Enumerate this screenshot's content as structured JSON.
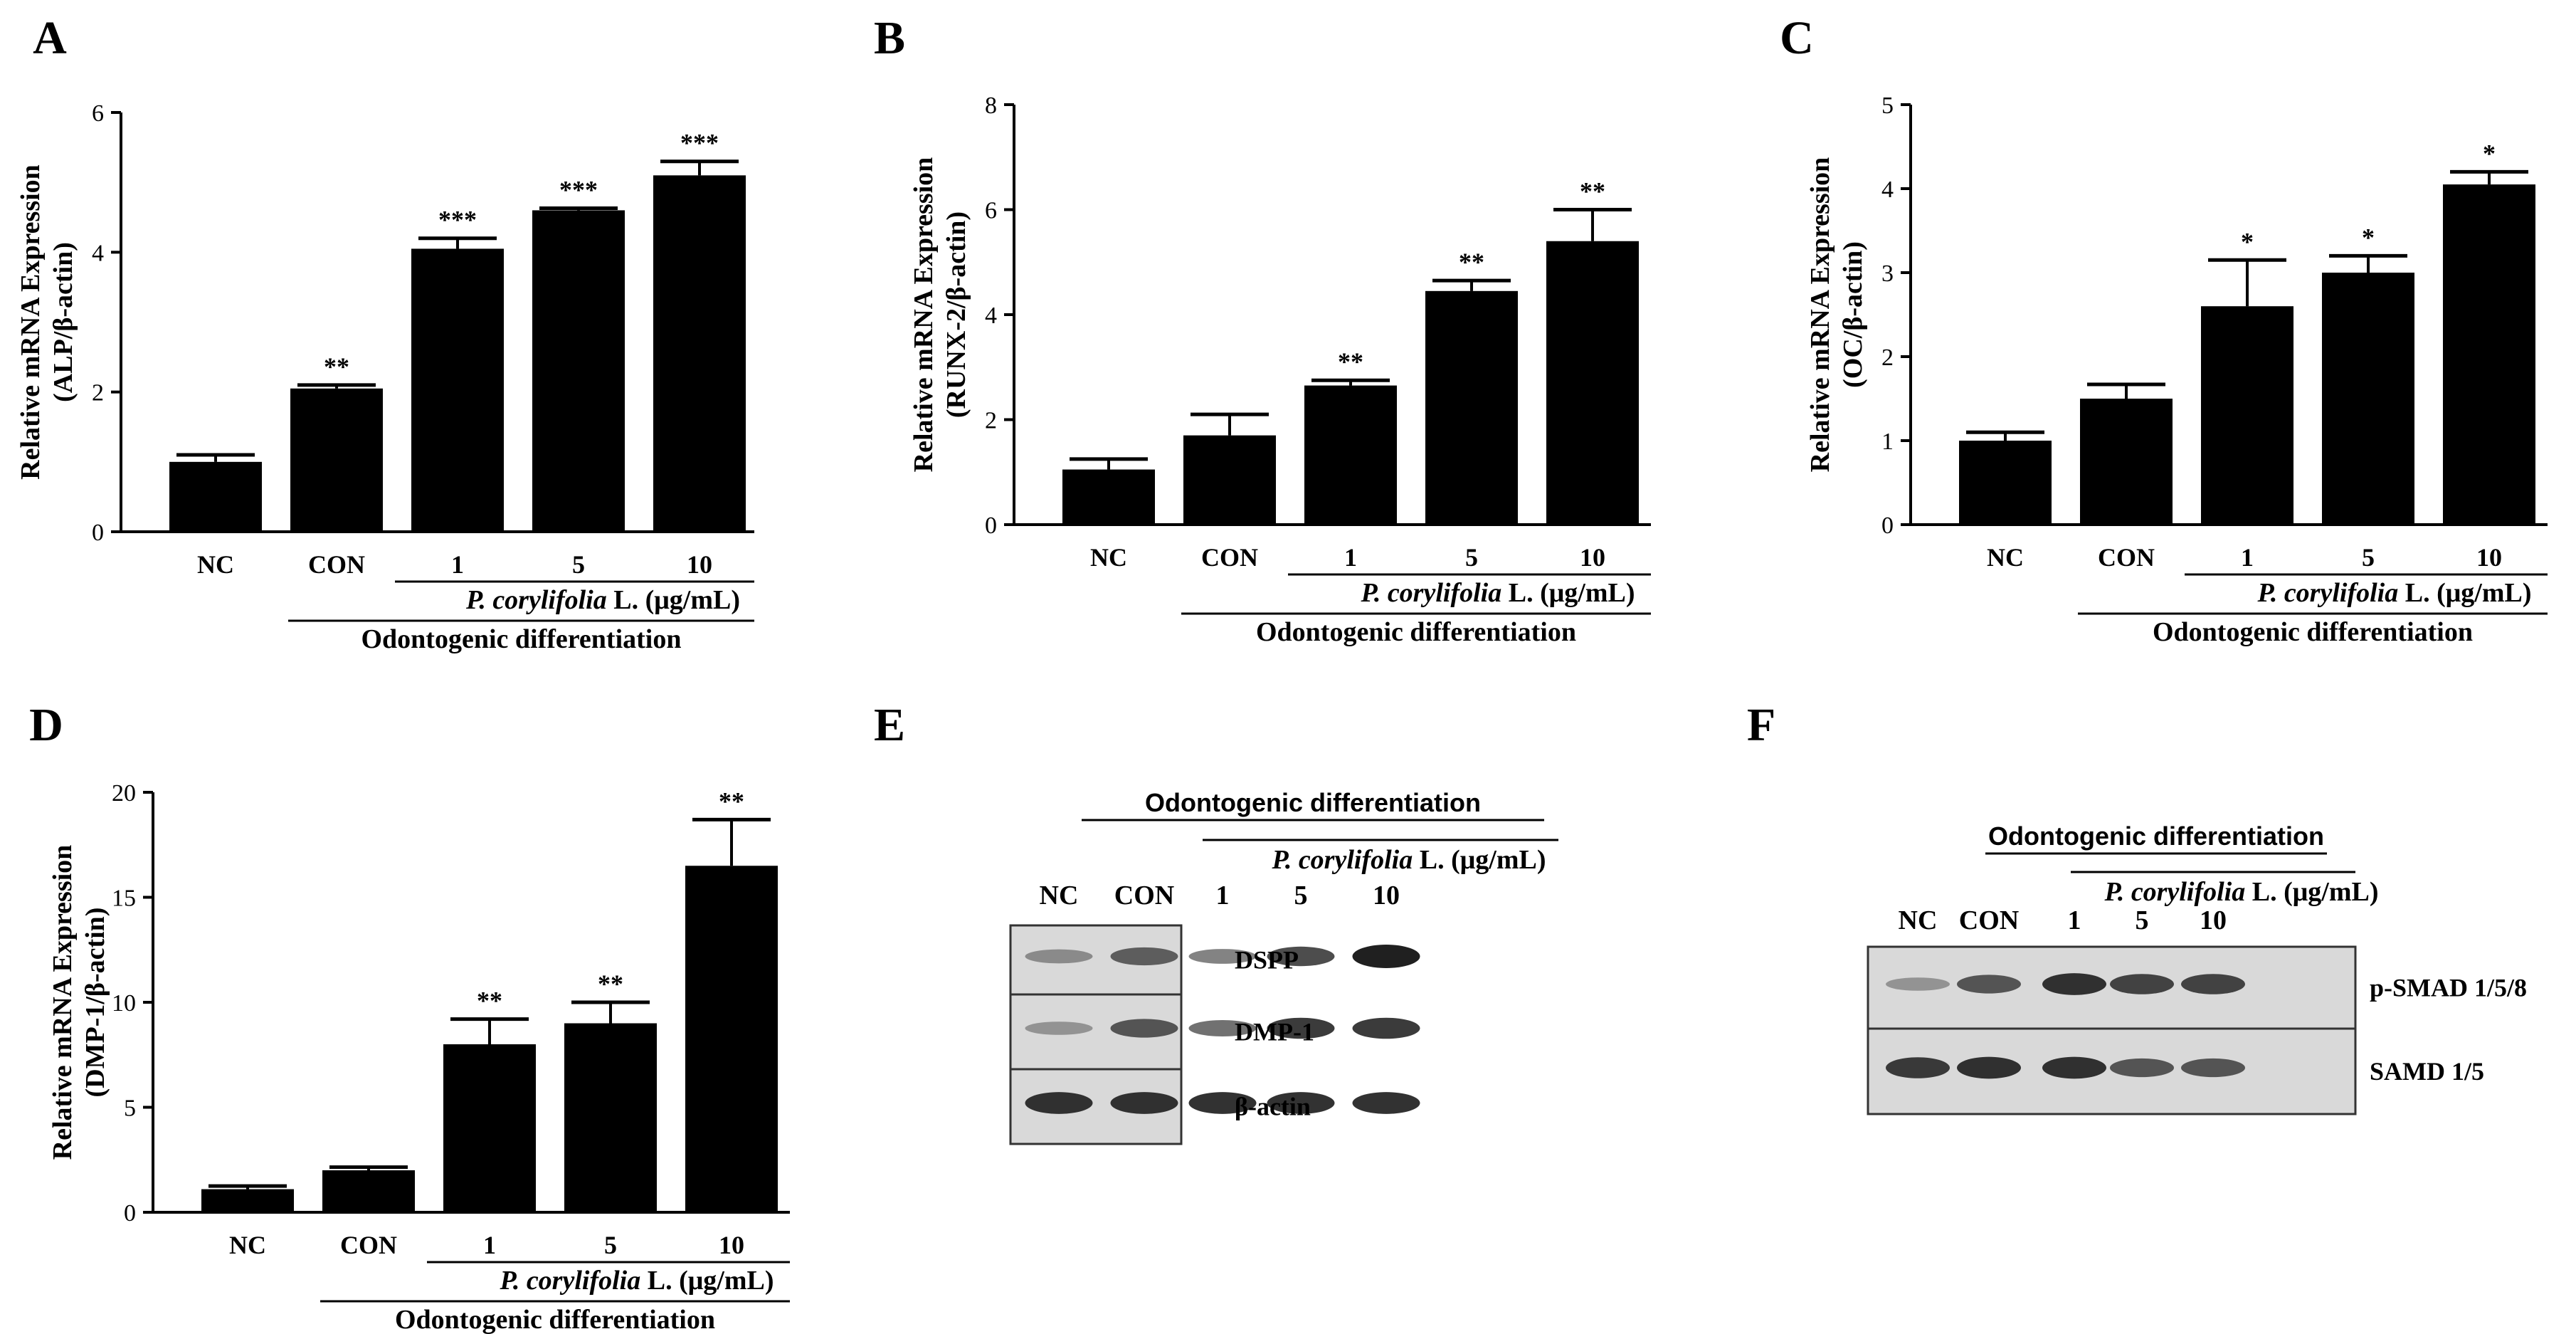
{
  "chart_data": [
    {
      "panel": "A",
      "type": "bar",
      "categories": [
        "NC",
        "CON",
        "1",
        "5",
        "10"
      ],
      "values": [
        1.0,
        2.05,
        4.05,
        4.6,
        5.1
      ],
      "errors": [
        0.1,
        0.05,
        0.15,
        0.03,
        0.2
      ],
      "significance": [
        "",
        "**",
        "***",
        "***",
        "***"
      ],
      "ylabel": [
        "Relative mRNA Expression",
        "(ALP/β-actin)"
      ],
      "ylim": [
        0,
        6
      ],
      "yticks": [
        "0",
        "2",
        "4",
        "6"
      ],
      "subgroup_label": "L. (μg/mL)",
      "subgroup_italic": "P. corylifolia",
      "group_label": "Odontogenic differentiation"
    },
    {
      "panel": "B",
      "type": "bar",
      "categories": [
        "NC",
        "CON",
        "1",
        "5",
        "10"
      ],
      "values": [
        1.05,
        1.7,
        2.65,
        4.45,
        5.4
      ],
      "errors": [
        0.2,
        0.4,
        0.1,
        0.2,
        0.6
      ],
      "significance": [
        "",
        "",
        "**",
        "**",
        "**"
      ],
      "ylabel": [
        "Relative mRNA Expression",
        "(RUNX-2/β-actin)"
      ],
      "ylim": [
        0,
        8
      ],
      "yticks": [
        "0",
        "2",
        "4",
        "6",
        "8"
      ],
      "subgroup_label": "L. (μg/mL)",
      "subgroup_italic": "P. corylifolia",
      "group_label": "Odontogenic differentiation"
    },
    {
      "panel": "C",
      "type": "bar",
      "categories": [
        "NC",
        "CON",
        "1",
        "5",
        "10"
      ],
      "values": [
        1.0,
        1.5,
        2.6,
        3.0,
        4.05
      ],
      "errors": [
        0.1,
        0.17,
        0.55,
        0.2,
        0.15
      ],
      "significance": [
        "",
        "",
        "*",
        "*",
        "*"
      ],
      "ylabel": [
        "Relative mRNA Expression",
        "(OC/β-actin)"
      ],
      "ylim": [
        0,
        5
      ],
      "yticks": [
        "0",
        "1",
        "2",
        "3",
        "4",
        "5"
      ],
      "subgroup_label": "L. (μg/mL)",
      "subgroup_italic": "P. corylifolia",
      "group_label": "Odontogenic differentiation"
    },
    {
      "panel": "D",
      "type": "bar",
      "categories": [
        "NC",
        "CON",
        "1",
        "5",
        "10"
      ],
      "values": [
        1.1,
        2.0,
        8.0,
        9.0,
        16.5
      ],
      "errors": [
        0.15,
        0.15,
        1.2,
        1.0,
        2.2
      ],
      "significance": [
        "",
        "",
        "**",
        "**",
        "**"
      ],
      "ylabel": [
        "Relative mRNA Expression",
        "(DMP-1/β-actin)"
      ],
      "ylim": [
        0,
        20
      ],
      "yticks": [
        "0",
        "5",
        "10",
        "15",
        "20"
      ],
      "subgroup_label": "L. (μg/mL)",
      "subgroup_italic": "P. corylifolia",
      "group_label": "Odontogenic differentiation"
    }
  ],
  "blots": [
    {
      "panel": "E",
      "group_label": "Odontogenic differentiation",
      "subgroup_italic": "P. corylifolia",
      "subgroup_label": "L. (μg/mL)",
      "lanes": [
        "NC",
        "CON",
        "1",
        "5",
        "10"
      ],
      "bands": [
        {
          "label": "DSPP",
          "intensity": [
            0.35,
            0.6,
            0.4,
            0.7,
            0.95
          ]
        },
        {
          "label": "DMP-1",
          "intensity": [
            0.3,
            0.65,
            0.5,
            0.8,
            0.8
          ]
        },
        {
          "label": "β-actin",
          "intensity": [
            0.85,
            0.85,
            0.85,
            0.85,
            0.85
          ]
        }
      ]
    },
    {
      "panel": "F",
      "group_label": "Odontogenic differentiation",
      "subgroup_italic": "P. corylifolia",
      "subgroup_label": "L. (μg/mL)",
      "lanes": [
        "NC",
        "CON",
        "1",
        "5",
        "10"
      ],
      "bands": [
        {
          "label": "p-SMAD 1/5/8",
          "intensity": [
            0.3,
            0.65,
            0.85,
            0.75,
            0.75
          ]
        },
        {
          "label": "SAMD 1/5",
          "intensity": [
            0.8,
            0.85,
            0.85,
            0.65,
            0.65
          ]
        }
      ]
    }
  ]
}
